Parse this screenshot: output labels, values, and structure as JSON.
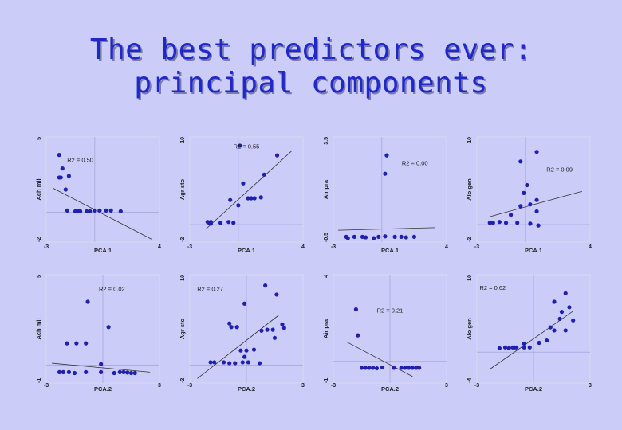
{
  "slide": {
    "title_line1": "The best predictors ever:",
    "title_line2": "principal components"
  },
  "colors": {
    "background": "#ccccf9",
    "title": "#1f28c8",
    "points": "#1f1fb0",
    "frame": "#d8d8f0"
  },
  "chart_data": [
    {
      "type": "scatter",
      "title": "",
      "xlabel": "PCA.1",
      "ylabel": "Ach mil",
      "xlim": [
        -3,
        4
      ],
      "ylim": [
        -2,
        5
      ],
      "xticks": [
        "-3",
        "4"
      ],
      "yticks": [
        "-2",
        "5"
      ],
      "annotation": "R2 = 0.50",
      "fit": [
        [
          -2.6,
          1.6
        ],
        [
          3.5,
          -1.8
        ]
      ],
      "points": [
        [
          -2.2,
          3.8
        ],
        [
          -2,
          2.9
        ],
        [
          -2.2,
          2.3
        ],
        [
          -2.1,
          2.3
        ],
        [
          -1.8,
          1.5
        ],
        [
          -1.6,
          2.4
        ],
        [
          -1.7,
          0.1
        ],
        [
          -1.2,
          0.05
        ],
        [
          -1,
          0.05
        ],
        [
          -0.9,
          0.05
        ],
        [
          -0.5,
          0.05
        ],
        [
          -0.3,
          0.05
        ],
        [
          0,
          0.1
        ],
        [
          0.3,
          0.1
        ],
        [
          0.7,
          0.1
        ],
        [
          1,
          0.1
        ],
        [
          1.6,
          0.05
        ]
      ]
    },
    {
      "type": "scatter",
      "title": "",
      "xlabel": "PCA.1",
      "ylabel": "Agr sto",
      "xlim": [
        -3,
        4
      ],
      "ylim": [
        -2,
        10
      ],
      "xticks": [
        "-3",
        "4"
      ],
      "yticks": [
        "-2",
        "10"
      ],
      "annotation": "R2 = 0.55",
      "fit": [
        [
          -2,
          -0.5
        ],
        [
          3.3,
          8.4
        ]
      ],
      "points": [
        [
          -1.9,
          0.3
        ],
        [
          -1.8,
          0.2
        ],
        [
          -1.7,
          0.3
        ],
        [
          -1.7,
          0.1
        ],
        [
          -1.1,
          0.2
        ],
        [
          -0.6,
          0.3
        ],
        [
          -0.3,
          0.2
        ],
        [
          -0.5,
          2.8
        ],
        [
          0,
          2.2
        ],
        [
          0.3,
          4.7
        ],
        [
          0.6,
          3
        ],
        [
          0.8,
          3
        ],
        [
          1,
          3
        ],
        [
          1.4,
          3.1
        ],
        [
          1.6,
          5.7
        ],
        [
          2.4,
          7.9
        ],
        [
          0.1,
          9
        ]
      ]
    },
    {
      "type": "scatter",
      "title": "",
      "xlabel": "PCA.1",
      "ylabel": "Air pra",
      "xlim": [
        -3,
        4
      ],
      "ylim": [
        -0.5,
        3.5
      ],
      "xticks": [
        "-3",
        "4"
      ],
      "yticks": [
        "-0.5",
        "3.5"
      ],
      "annotation": "R2 = 0.00",
      "fit": [
        [
          -2.7,
          -0.05
        ],
        [
          3.3,
          0.05
        ]
      ],
      "points": [
        [
          -2.2,
          -0.3
        ],
        [
          -2.1,
          -0.35
        ],
        [
          -1.7,
          -0.3
        ],
        [
          -1.2,
          -0.3
        ],
        [
          -1,
          -0.32
        ],
        [
          -0.5,
          -0.35
        ],
        [
          -0.2,
          -0.3
        ],
        [
          0.2,
          -0.28
        ],
        [
          0.8,
          -0.3
        ],
        [
          1.2,
          -0.3
        ],
        [
          1.5,
          -0.32
        ],
        [
          2,
          -0.3
        ],
        [
          0.3,
          2.8
        ],
        [
          0.2,
          2.1
        ]
      ]
    },
    {
      "type": "scatter",
      "title": "",
      "xlabel": "PCA.1",
      "ylabel": "Alo gen",
      "xlim": [
        -3,
        4
      ],
      "ylim": [
        -2,
        10
      ],
      "xticks": [
        "-3",
        "4"
      ],
      "yticks": [
        "-2",
        "10"
      ],
      "annotation": "R2 = 0.09",
      "fit": [
        [
          -2.2,
          0.9
        ],
        [
          3.5,
          3.8
        ]
      ],
      "points": [
        [
          -2.2,
          0.2
        ],
        [
          -2,
          0.2
        ],
        [
          -1.6,
          0.3
        ],
        [
          -1.2,
          0.2
        ],
        [
          -0.5,
          0.2
        ],
        [
          0.3,
          0.1
        ],
        [
          0.8,
          -0.1
        ],
        [
          0.7,
          1.5
        ],
        [
          -0.3,
          2.1
        ],
        [
          0.3,
          2.3
        ],
        [
          -0.1,
          3.6
        ],
        [
          0.7,
          2.8
        ],
        [
          0.1,
          4.5
        ],
        [
          -0.3,
          7.2
        ],
        [
          0.7,
          8.3
        ],
        [
          -0.9,
          1.1
        ]
      ]
    },
    {
      "type": "scatter",
      "title": "",
      "xlabel": "PCA.2",
      "ylabel": "Ach mil",
      "xlim": [
        -3,
        3
      ],
      "ylim": [
        -1,
        5
      ],
      "xticks": [
        "-3",
        "3"
      ],
      "yticks": [
        "-1",
        "5"
      ],
      "annotation": "R2 = 0.02",
      "fit": [
        [
          -2.7,
          0.1
        ],
        [
          2.5,
          -0.4
        ]
      ],
      "points": [
        [
          -2.3,
          -0.4
        ],
        [
          -2.1,
          -0.4
        ],
        [
          -1.8,
          -0.4
        ],
        [
          -1.5,
          -0.45
        ],
        [
          -0.9,
          -0.4
        ],
        [
          -0.1,
          -0.4
        ],
        [
          0.6,
          -0.45
        ],
        [
          0.9,
          -0.4
        ],
        [
          1.1,
          -0.4
        ],
        [
          1.3,
          -0.42
        ],
        [
          1.5,
          -0.45
        ],
        [
          1.7,
          -0.45
        ],
        [
          -0.1,
          0.05
        ],
        [
          -1.9,
          1.2
        ],
        [
          -1.4,
          1.2
        ],
        [
          -0.9,
          1.2
        ],
        [
          0.3,
          2.1
        ],
        [
          -0.8,
          3.5
        ]
      ]
    },
    {
      "type": "scatter",
      "title": "",
      "xlabel": "PCA.2",
      "ylabel": "Agr sto",
      "xlim": [
        -3,
        3
      ],
      "ylim": [
        -2,
        10
      ],
      "xticks": [
        "-3",
        "3"
      ],
      "yticks": [
        "-2",
        "10"
      ],
      "annotation": "R2 = 0.27",
      "fit": [
        [
          -2.6,
          -1.5
        ],
        [
          1.7,
          5.5
        ]
      ],
      "points": [
        [
          -1.9,
          0.3
        ],
        [
          -1.7,
          0.3
        ],
        [
          -1.2,
          0.3
        ],
        [
          -0.9,
          0.2
        ],
        [
          -0.6,
          0.2
        ],
        [
          -0.2,
          0.3
        ],
        [
          0.1,
          0.3
        ],
        [
          0.7,
          0.2
        ],
        [
          -0.9,
          4.6
        ],
        [
          -0.8,
          4.2
        ],
        [
          -0.5,
          4.2
        ],
        [
          -0.3,
          1.6
        ],
        [
          -0.1,
          0.9
        ],
        [
          0,
          1.6
        ],
        [
          0.4,
          1.7
        ],
        [
          0.8,
          3.8
        ],
        [
          1.1,
          3.9
        ],
        [
          1.4,
          3.9
        ],
        [
          1.9,
          4.5
        ],
        [
          2,
          4.1
        ],
        [
          -0.1,
          6.8
        ],
        [
          1.6,
          7.8
        ],
        [
          1,
          8.8
        ],
        [
          1.5,
          3
        ]
      ]
    },
    {
      "type": "scatter",
      "title": "",
      "xlabel": "PCA.2",
      "ylabel": "Air pra",
      "xlim": [
        -3,
        3
      ],
      "ylim": [
        -1,
        4
      ],
      "xticks": [
        "-3",
        "3"
      ],
      "yticks": [
        "-1",
        "4"
      ],
      "annotation": "R2 = 0.21",
      "fit": [
        [
          -2.3,
          0.9
        ],
        [
          1.2,
          -0.7
        ]
      ],
      "points": [
        [
          -1.5,
          -0.3
        ],
        [
          -1.3,
          -0.3
        ],
        [
          -1.1,
          -0.3
        ],
        [
          -0.9,
          -0.3
        ],
        [
          -0.7,
          -0.32
        ],
        [
          -0.4,
          -0.28
        ],
        [
          0.2,
          -0.3
        ],
        [
          0.6,
          -0.3
        ],
        [
          0.8,
          -0.3
        ],
        [
          1,
          -0.3
        ],
        [
          1.2,
          -0.3
        ],
        [
          1.4,
          -0.3
        ],
        [
          1.55,
          -0.3
        ],
        [
          -1.7,
          1.2
        ],
        [
          -1.8,
          2.4
        ]
      ]
    },
    {
      "type": "scatter",
      "title": "",
      "xlabel": "PCA.2",
      "ylabel": "Alo gen",
      "xlim": [
        -3,
        3
      ],
      "ylim": [
        -4,
        10
      ],
      "xticks": [
        "-3",
        "3"
      ],
      "yticks": [
        "-4",
        "10"
      ],
      "annotation": "R2 = 0.62",
      "fit": [
        [
          -2.3,
          -2.2
        ],
        [
          2.1,
          5.3
        ]
      ],
      "points": [
        [
          -1.8,
          0.5
        ],
        [
          -1.5,
          0.6
        ],
        [
          -1.3,
          0.5
        ],
        [
          -1.1,
          0.6
        ],
        [
          -0.9,
          0.6
        ],
        [
          -0.5,
          0.6
        ],
        [
          -1,
          0.6
        ],
        [
          -0.2,
          0.6
        ],
        [
          0.3,
          1.2
        ],
        [
          0.7,
          1.5
        ],
        [
          0.9,
          3.2
        ],
        [
          1.1,
          2.8
        ],
        [
          1.4,
          4.3
        ],
        [
          1.7,
          2.8
        ],
        [
          1.5,
          5.2
        ],
        [
          1.1,
          6.5
        ],
        [
          1.9,
          5.8
        ],
        [
          2.1,
          4.1
        ],
        [
          1.7,
          7.6
        ],
        [
          -0.5,
          1.1
        ]
      ]
    }
  ]
}
